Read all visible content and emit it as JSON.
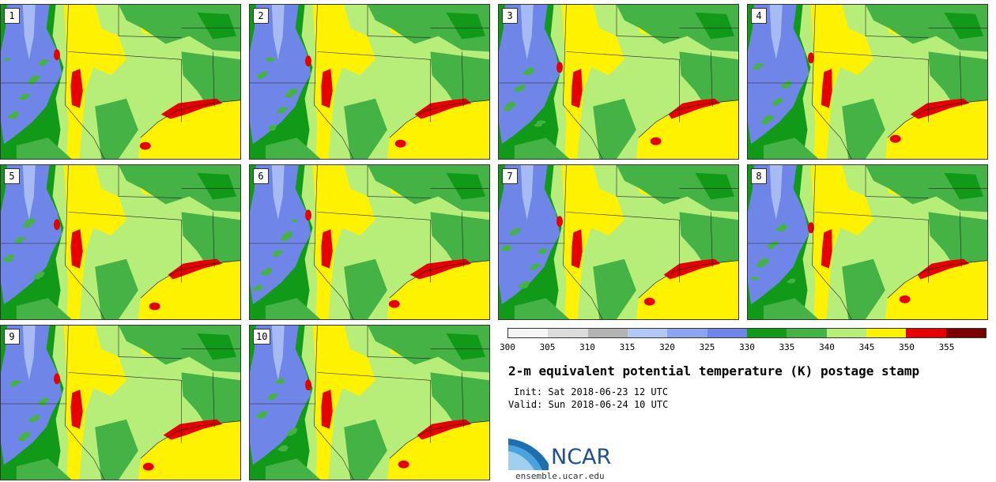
{
  "panels": [
    {
      "label": "1",
      "variant": 0
    },
    {
      "label": "2",
      "variant": 1
    },
    {
      "label": "3",
      "variant": 2
    },
    {
      "label": "4",
      "variant": 3
    },
    {
      "label": "5",
      "variant": 4
    },
    {
      "label": "6",
      "variant": 5
    },
    {
      "label": "7",
      "variant": 6
    },
    {
      "label": "8",
      "variant": 7
    },
    {
      "label": "9",
      "variant": 8
    },
    {
      "label": "10",
      "variant": 9
    }
  ],
  "colorbar": {
    "ticks": [
      "300",
      "305",
      "310",
      "315",
      "320",
      "325",
      "330",
      "335",
      "340",
      "345",
      "350",
      "355"
    ],
    "colors": [
      "#f5f5f5",
      "#dcdcdc",
      "#b3b3b3",
      "#b4c8f5",
      "#8ca5f0",
      "#6f86e8",
      "#109a18",
      "#45b245",
      "#b7ee7a",
      "#fff200",
      "#e60000",
      "#7a0000"
    ]
  },
  "title": "2-m equivalent potential temperature (K) postage stamp",
  "init": "Init: Sat 2018-06-23 12 UTC",
  "valid": "Valid: Sun 2018-06-24 10 UTC",
  "logo": {
    "text": "NCAR",
    "icon": "ncar-swoosh-icon",
    "color": "#1d4f91"
  },
  "site": "ensemble.ucar.edu"
}
